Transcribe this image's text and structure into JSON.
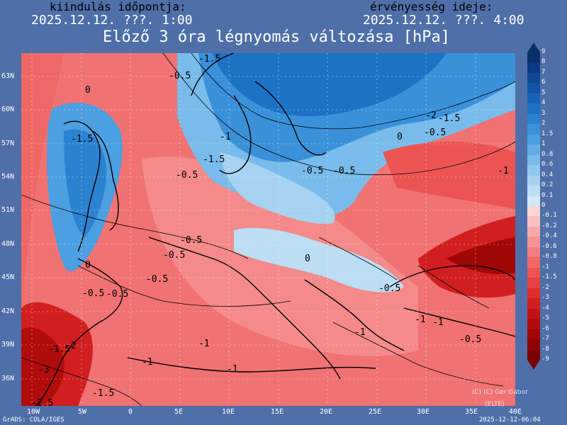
{
  "header": {
    "init_label": "kiindulás időpontja:",
    "init_time": "2025.12.12. ???. 1:00",
    "valid_label": "érvényesség ideje:",
    "valid_time": "2025.12.12. ???. 4:00"
  },
  "title": "Előző 3 óra légnyomás változása [hPa]",
  "map": {
    "lat_labels": [
      "63N",
      "60N",
      "57N",
      "54N",
      "51N",
      "48N",
      "45N",
      "42N",
      "39N",
      "36N"
    ],
    "lon_labels": [
      "10W",
      "5W",
      "0",
      "5E",
      "10E",
      "15E",
      "20E",
      "25E",
      "30E",
      "35E",
      "40E"
    ],
    "isobar_labels": [
      "-1.5",
      "-0.5",
      "0",
      "-1",
      "-1.5",
      "-2",
      "-1.5",
      "-0.5",
      "0",
      "-0.5",
      "-1",
      "-0.5",
      "-0.5",
      "-1.5",
      "-0.5",
      "-0.5",
      "0",
      "-0.5",
      "0",
      "-0.5",
      "-0.5",
      "-1",
      "-1",
      "-1",
      "-0.5",
      "-2",
      "-1.5",
      "-2.5",
      "-3",
      "-1.5",
      "-1",
      "-1",
      "-0.5",
      "-1"
    ]
  },
  "colorbar": {
    "levels": [
      "9",
      "8",
      "7",
      "6",
      "5",
      "4",
      "3",
      "2",
      "1.5",
      "1",
      "0.8",
      "0.6",
      "0.4",
      "0.2",
      "0.1",
      "0",
      "-0.1",
      "-0.2",
      "-0.4",
      "-0.6",
      "-0.8",
      "-1",
      "-1.5",
      "-2",
      "-3",
      "-4",
      "-5",
      "-6",
      "-7",
      "-8",
      "-9"
    ],
    "colors": [
      "#08306b",
      "#0b3b82",
      "#0e4797",
      "#1255a8",
      "#1763b8",
      "#1e72c5",
      "#2b82d0",
      "#3a91d9",
      "#4c9fe0",
      "#62ade5",
      "#79bbea",
      "#90c8ee",
      "#a6d3f1",
      "#bcddf4",
      "#d2e7f7",
      "#fbd6d6",
      "#f8c0c0",
      "#f6aaaa",
      "#f49494",
      "#f27e7e",
      "#ef6868",
      "#ec5454",
      "#e64040",
      "#de2e2e",
      "#d11f1f",
      "#c21414",
      "#b10c0c",
      "#a00606",
      "#8e0303",
      "#7a0101"
    ]
  },
  "footer": {
    "left": "GrADS: COLA/IGES",
    "right": "2025-12-12-06:04",
    "credit_line1": "(C) (C) Ger Gábor",
    "credit_line2": "(ELTE)"
  }
}
